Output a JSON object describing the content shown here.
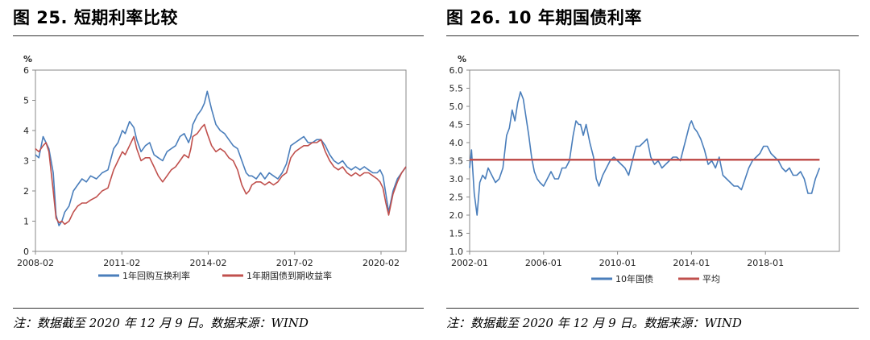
{
  "left": {
    "title": "图 25. 短期利率比较",
    "note": "注：数据截至 2020 年 12 月 9 日。数据来源：WIND"
  },
  "right": {
    "title": "图 26. 10 年期国债利率",
    "note": "注：数据截至 2020 年 12 月 9 日。数据来源：WIND"
  },
  "chart_data": [
    {
      "type": "line",
      "ylabel": "%",
      "xlim": [
        2008.083,
        2020.95
      ],
      "ylim": [
        0,
        6
      ],
      "yticks": [
        0,
        1,
        2,
        3,
        4,
        5,
        6
      ],
      "yticklabels": [
        "0",
        "1",
        "2",
        "3",
        "4",
        "5",
        "6"
      ],
      "xticks": [
        2008.083,
        2011.083,
        2014.083,
        2017.083,
        2020.083
      ],
      "xticklabels": [
        "2008-02",
        "2011-02",
        "2014-02",
        "2017-02",
        "2020-02"
      ],
      "grid": false,
      "legend": "bottom",
      "series": [
        {
          "name": "1年回购互换利率",
          "color": "#4a7ebb",
          "x": [
            2008.08,
            2008.2,
            2008.35,
            2008.45,
            2008.55,
            2008.7,
            2008.8,
            2008.9,
            2009.0,
            2009.1,
            2009.25,
            2009.4,
            2009.55,
            2009.7,
            2009.85,
            2010.0,
            2010.2,
            2010.4,
            2010.6,
            2010.8,
            2010.95,
            2011.1,
            2011.2,
            2011.35,
            2011.5,
            2011.6,
            2011.75,
            2011.9,
            2012.05,
            2012.2,
            2012.35,
            2012.5,
            2012.65,
            2012.8,
            2012.95,
            2013.1,
            2013.25,
            2013.4,
            2013.48,
            2013.55,
            2013.7,
            2013.85,
            2013.95,
            2014.05,
            2014.2,
            2014.35,
            2014.5,
            2014.65,
            2014.8,
            2014.95,
            2015.1,
            2015.25,
            2015.4,
            2015.5,
            2015.6,
            2015.75,
            2015.9,
            2016.05,
            2016.2,
            2016.35,
            2016.5,
            2016.65,
            2016.8,
            2016.95,
            2017.1,
            2017.25,
            2017.4,
            2017.55,
            2017.7,
            2017.85,
            2018.0,
            2018.15,
            2018.3,
            2018.45,
            2018.6,
            2018.75,
            2018.9,
            2019.05,
            2019.2,
            2019.35,
            2019.5,
            2019.65,
            2019.8,
            2019.95,
            2020.05,
            2020.15,
            2020.25,
            2020.35,
            2020.5,
            2020.65,
            2020.8,
            2020.95
          ],
          "y": [
            3.2,
            3.1,
            3.8,
            3.6,
            3.4,
            2.6,
            1.2,
            0.85,
            1.0,
            1.3,
            1.5,
            2.0,
            2.2,
            2.4,
            2.3,
            2.5,
            2.4,
            2.6,
            2.7,
            3.4,
            3.6,
            4.0,
            3.9,
            4.3,
            4.1,
            3.7,
            3.3,
            3.5,
            3.6,
            3.2,
            3.1,
            3.0,
            3.3,
            3.4,
            3.5,
            3.8,
            3.9,
            3.6,
            3.8,
            4.2,
            4.5,
            4.7,
            4.9,
            5.3,
            4.7,
            4.2,
            4.0,
            3.9,
            3.7,
            3.5,
            3.4,
            3.0,
            2.6,
            2.5,
            2.5,
            2.4,
            2.6,
            2.4,
            2.6,
            2.5,
            2.4,
            2.6,
            2.9,
            3.5,
            3.6,
            3.7,
            3.8,
            3.6,
            3.6,
            3.7,
            3.7,
            3.5,
            3.2,
            3.0,
            2.9,
            3.0,
            2.8,
            2.7,
            2.8,
            2.7,
            2.8,
            2.7,
            2.6,
            2.6,
            2.7,
            2.5,
            1.9,
            1.3,
            2.0,
            2.4,
            2.6,
            2.8
          ]
        },
        {
          "name": "1年期国债到期收益率",
          "color": "#c0504d",
          "x": [
            2008.08,
            2008.2,
            2008.35,
            2008.45,
            2008.55,
            2008.7,
            2008.8,
            2008.9,
            2009.0,
            2009.1,
            2009.25,
            2009.4,
            2009.55,
            2009.7,
            2009.85,
            2010.0,
            2010.2,
            2010.4,
            2010.6,
            2010.8,
            2010.95,
            2011.1,
            2011.2,
            2011.35,
            2011.5,
            2011.6,
            2011.75,
            2011.9,
            2012.05,
            2012.2,
            2012.35,
            2012.5,
            2012.65,
            2012.8,
            2012.95,
            2013.1,
            2013.25,
            2013.4,
            2013.48,
            2013.55,
            2013.7,
            2013.85,
            2013.95,
            2014.05,
            2014.2,
            2014.35,
            2014.5,
            2014.65,
            2014.8,
            2014.95,
            2015.1,
            2015.25,
            2015.4,
            2015.5,
            2015.6,
            2015.75,
            2015.9,
            2016.05,
            2016.2,
            2016.35,
            2016.5,
            2016.65,
            2016.8,
            2016.95,
            2017.1,
            2017.25,
            2017.4,
            2017.55,
            2017.7,
            2017.85,
            2018.0,
            2018.15,
            2018.3,
            2018.45,
            2018.6,
            2018.75,
            2018.9,
            2019.05,
            2019.2,
            2019.35,
            2019.5,
            2019.65,
            2019.8,
            2019.95,
            2020.05,
            2020.15,
            2020.25,
            2020.35,
            2020.5,
            2020.65,
            2020.8,
            2020.95
          ],
          "y": [
            3.4,
            3.3,
            3.5,
            3.6,
            3.3,
            2.0,
            1.1,
            0.95,
            1.0,
            0.9,
            1.0,
            1.3,
            1.5,
            1.6,
            1.6,
            1.7,
            1.8,
            2.0,
            2.1,
            2.7,
            3.0,
            3.3,
            3.2,
            3.5,
            3.8,
            3.4,
            3.0,
            3.1,
            3.1,
            2.8,
            2.5,
            2.3,
            2.5,
            2.7,
            2.8,
            3.0,
            3.2,
            3.1,
            3.4,
            3.8,
            3.9,
            4.1,
            4.2,
            3.9,
            3.5,
            3.3,
            3.4,
            3.3,
            3.1,
            3.0,
            2.7,
            2.2,
            1.9,
            2.0,
            2.2,
            2.3,
            2.3,
            2.2,
            2.3,
            2.2,
            2.3,
            2.5,
            2.6,
            3.1,
            3.3,
            3.4,
            3.5,
            3.5,
            3.6,
            3.6,
            3.7,
            3.3,
            3.0,
            2.8,
            2.7,
            2.8,
            2.6,
            2.5,
            2.6,
            2.5,
            2.6,
            2.6,
            2.5,
            2.4,
            2.3,
            2.1,
            1.6,
            1.2,
            1.9,
            2.3,
            2.6,
            2.8
          ]
        }
      ]
    },
    {
      "type": "line",
      "ylabel": "%",
      "xlim": [
        2002.0,
        2022.0
      ],
      "ylim": [
        1.0,
        6.0
      ],
      "yticks": [
        1.0,
        1.5,
        2.0,
        2.5,
        3.0,
        3.5,
        4.0,
        4.5,
        5.0,
        5.5,
        6.0
      ],
      "yticklabels": [
        "1.0",
        "1.5",
        "2.0",
        "2.5",
        "3.0",
        "3.5",
        "4.0",
        "4.5",
        "5.0",
        "5.5",
        "6.0"
      ],
      "xticks": [
        2002.0,
        2006.0,
        2010.0,
        2014.0,
        2018.0
      ],
      "xticklabels": [
        "2002-01",
        "2006-01",
        "2010-01",
        "2014-01",
        "2018-01"
      ],
      "grid": false,
      "legend": "bottom",
      "series": [
        {
          "name": "10年国债",
          "color": "#4a7ebb",
          "x": [
            2002.0,
            2002.1,
            2002.25,
            2002.4,
            2002.55,
            2002.7,
            2002.85,
            2003.0,
            2003.2,
            2003.4,
            2003.6,
            2003.8,
            2004.0,
            2004.15,
            2004.3,
            2004.45,
            2004.6,
            2004.75,
            2004.9,
            2005.05,
            2005.2,
            2005.35,
            2005.5,
            2005.65,
            2005.8,
            2006.0,
            2006.2,
            2006.4,
            2006.6,
            2006.8,
            2007.0,
            2007.2,
            2007.4,
            2007.6,
            2007.75,
            2007.9,
            2008.0,
            2008.15,
            2008.3,
            2008.5,
            2008.7,
            2008.85,
            2009.0,
            2009.2,
            2009.4,
            2009.6,
            2009.8,
            2010.0,
            2010.2,
            2010.4,
            2010.6,
            2010.8,
            2011.0,
            2011.2,
            2011.4,
            2011.6,
            2011.8,
            2012.0,
            2012.2,
            2012.4,
            2012.6,
            2012.8,
            2013.0,
            2013.2,
            2013.4,
            2013.6,
            2013.75,
            2013.9,
            2014.0,
            2014.15,
            2014.3,
            2014.5,
            2014.7,
            2014.9,
            2015.1,
            2015.3,
            2015.5,
            2015.7,
            2015.9,
            2016.1,
            2016.3,
            2016.5,
            2016.7,
            2016.9,
            2017.1,
            2017.3,
            2017.5,
            2017.7,
            2017.9,
            2018.1,
            2018.3,
            2018.5,
            2018.7,
            2018.9,
            2019.1,
            2019.3,
            2019.5,
            2019.7,
            2019.9,
            2020.1,
            2020.3,
            2020.5,
            2020.7,
            2020.93
          ],
          "y": [
            3.3,
            3.8,
            2.6,
            2.0,
            2.9,
            3.1,
            3.0,
            3.3,
            3.1,
            2.9,
            3.0,
            3.3,
            4.2,
            4.4,
            4.9,
            4.6,
            5.1,
            5.4,
            5.2,
            4.7,
            4.2,
            3.6,
            3.2,
            3.0,
            2.9,
            2.8,
            3.0,
            3.2,
            3.0,
            3.0,
            3.3,
            3.3,
            3.5,
            4.2,
            4.6,
            4.5,
            4.5,
            4.2,
            4.5,
            4.0,
            3.6,
            3.0,
            2.8,
            3.1,
            3.3,
            3.5,
            3.6,
            3.5,
            3.4,
            3.3,
            3.1,
            3.5,
            3.9,
            3.9,
            4.0,
            4.1,
            3.6,
            3.4,
            3.5,
            3.3,
            3.4,
            3.5,
            3.6,
            3.6,
            3.5,
            3.9,
            4.2,
            4.5,
            4.6,
            4.4,
            4.3,
            4.1,
            3.8,
            3.4,
            3.5,
            3.3,
            3.6,
            3.1,
            3.0,
            2.9,
            2.8,
            2.8,
            2.7,
            3.0,
            3.3,
            3.5,
            3.6,
            3.7,
            3.9,
            3.9,
            3.7,
            3.6,
            3.5,
            3.3,
            3.2,
            3.3,
            3.1,
            3.1,
            3.2,
            3.0,
            2.6,
            2.6,
            3.0,
            3.3
          ]
        },
        {
          "name": "平均",
          "color": "#c0504d",
          "x": [
            2002.0,
            2020.93
          ],
          "y": [
            3.53,
            3.53
          ]
        }
      ]
    }
  ]
}
